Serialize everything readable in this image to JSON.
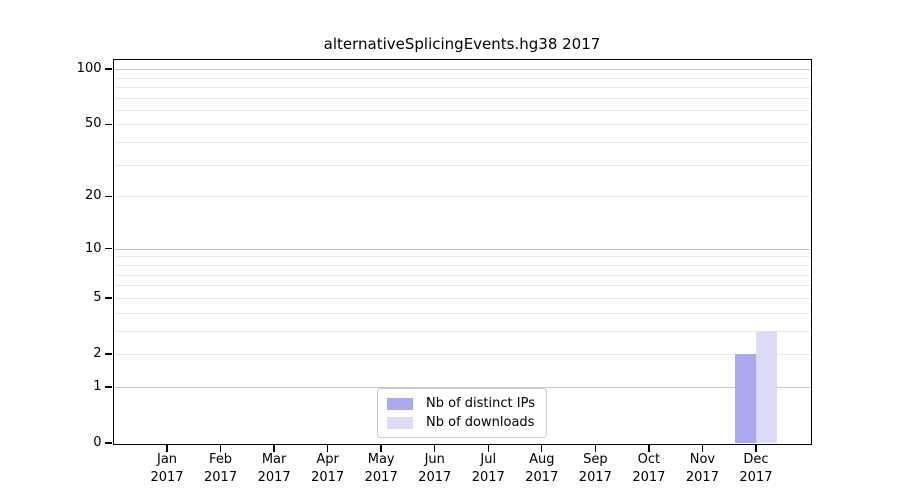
{
  "title": "alternativeSplicingEvents.hg38 2017",
  "chart_data": {
    "type": "bar",
    "title": "alternativeSplicingEvents.hg38 2017",
    "categories": [
      "Jan 2017",
      "Feb 2017",
      "Mar 2017",
      "Apr 2017",
      "May 2017",
      "Jun 2017",
      "Jul 2017",
      "Aug 2017",
      "Sep 2017",
      "Oct 2017",
      "Nov 2017",
      "Dec 2017"
    ],
    "series": [
      {
        "name": "Nb of distinct IPs",
        "color": "#a9a9f0",
        "values": [
          0,
          0,
          0,
          0,
          0,
          0,
          0,
          0,
          0,
          0,
          0,
          2
        ]
      },
      {
        "name": "Nb of downloads",
        "color": "#dcdcf8",
        "values": [
          0,
          0,
          0,
          0,
          0,
          0,
          0,
          0,
          0,
          0,
          0,
          3
        ]
      }
    ],
    "xlabel": "",
    "ylabel": "",
    "yscale": "log1p",
    "ylim": [
      0,
      112
    ],
    "yticks": [
      0,
      1,
      2,
      5,
      10,
      20,
      50,
      100
    ],
    "major_gridlines": [
      1,
      10,
      100
    ],
    "minor_gridlines": [
      2,
      3,
      4,
      5,
      6,
      7,
      8,
      9,
      20,
      30,
      40,
      50,
      60,
      70,
      80,
      90
    ],
    "grid": true,
    "legend_position": "lower center",
    "bar_layout": "grouped side-by-side, only December has non-zero values"
  },
  "style": {
    "background": "#ffffff",
    "spine_color": "#000000",
    "text_color": "#000000",
    "major_grid_color": "#c8c8c8",
    "minor_grid_color": "#e8e8e8",
    "legend_border_color": "#cccccc"
  }
}
